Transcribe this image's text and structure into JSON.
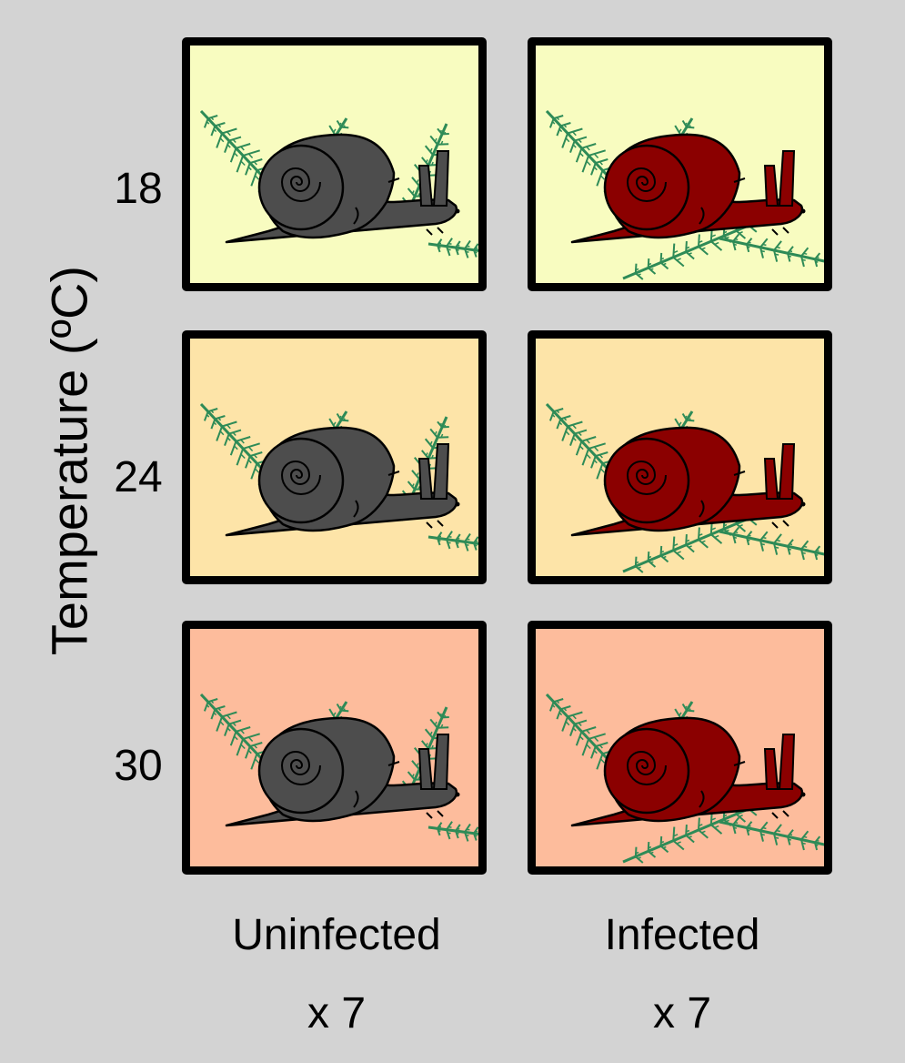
{
  "y_axis": {
    "label": "Temperature (ºC)"
  },
  "rows": [
    {
      "label": "18",
      "color": "#f8fcc0"
    },
    {
      "label": "24",
      "color": "#fde4a8"
    },
    {
      "label": "30",
      "color": "#fdbc9c"
    }
  ],
  "columns": [
    {
      "label": "Uninfected",
      "count": "x 7",
      "snail_color": "#4d4d4d"
    },
    {
      "label": "Infected",
      "count": "x 7",
      "snail_color": "#8b0000"
    }
  ],
  "plant_color": "#2e8b57"
}
